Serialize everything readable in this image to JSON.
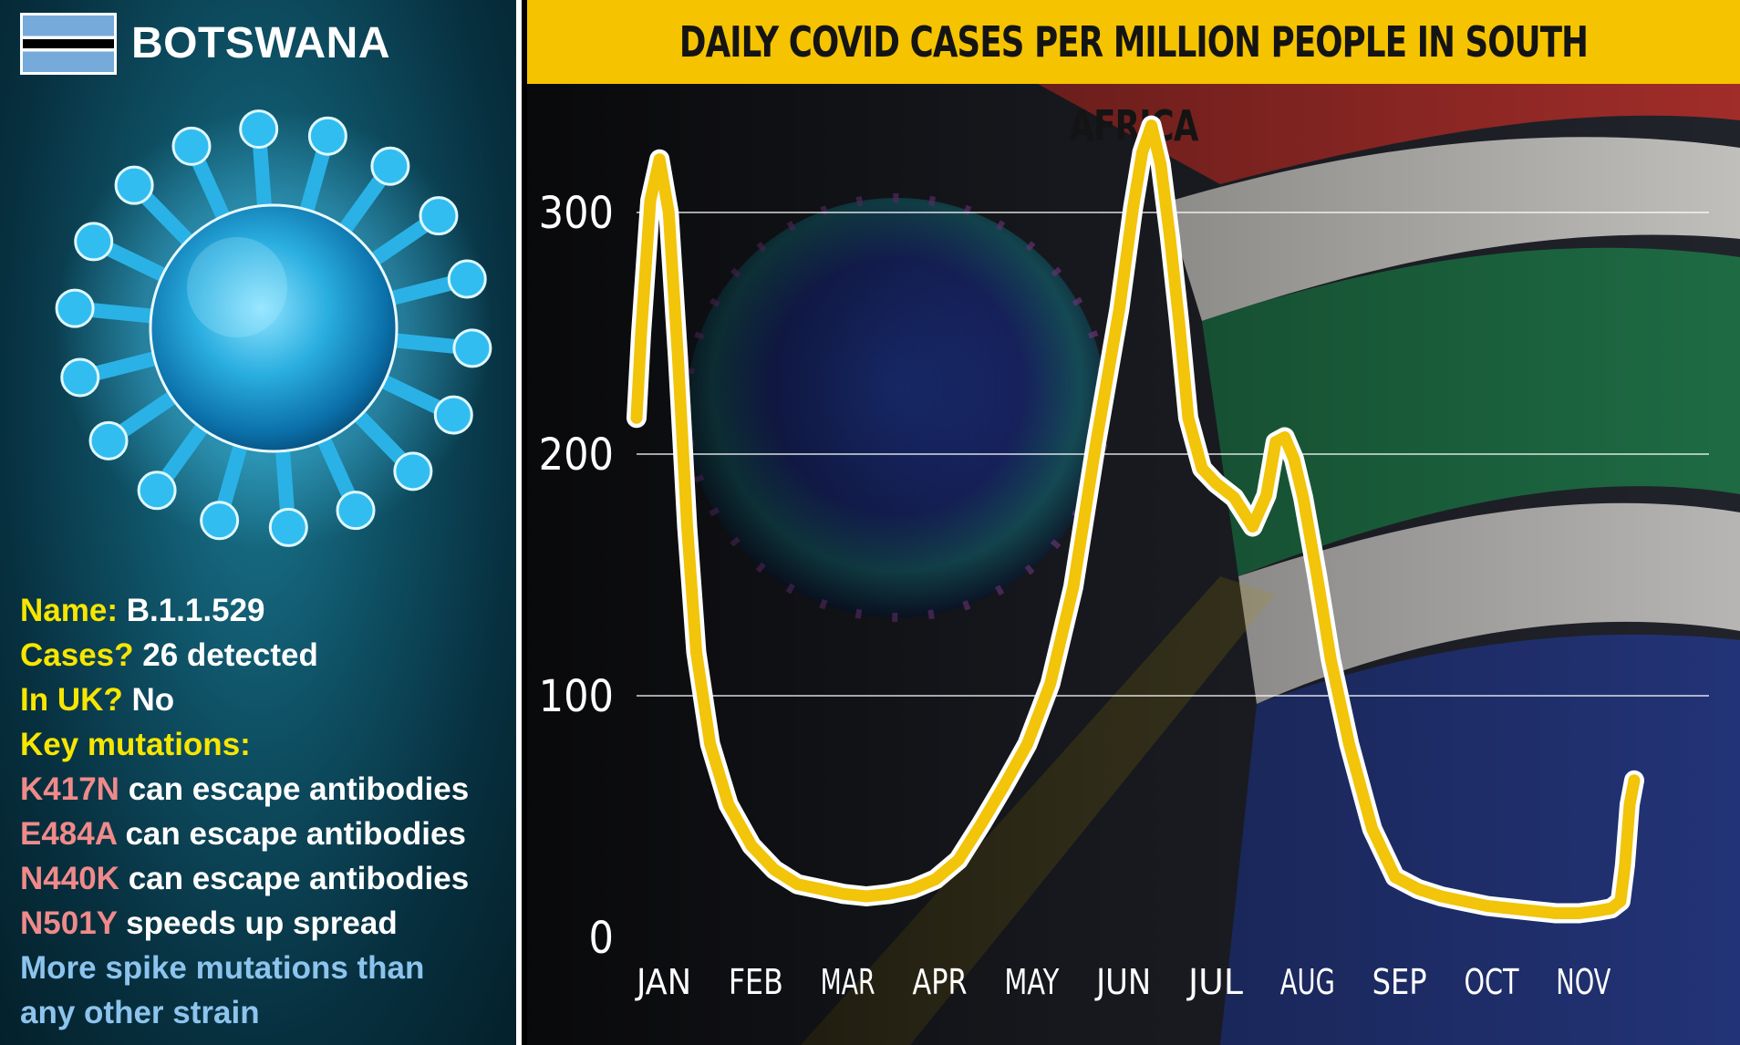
{
  "left_panel": {
    "country": "BOTSWANA",
    "facts": {
      "name_label": "Name:",
      "name_value": "B.1.1.529",
      "cases_label": "Cases?",
      "cases_value": "26 detected",
      "uk_label": "In UK?",
      "uk_value": "No",
      "mutations_label": "Key mutations:",
      "mutations": [
        {
          "code": "K417N",
          "effect": "can escape antibodies"
        },
        {
          "code": "E484A",
          "effect": "can escape antibodies"
        },
        {
          "code": "N440K",
          "effect": "can escape antibodies"
        },
        {
          "code": "N501Y",
          "effect": "speeds up spread"
        }
      ],
      "note_line1": "More spike mutations than",
      "note_line2": "any other strain"
    }
  },
  "colors": {
    "title_bar": "#f5c300",
    "line": "#f2c40a",
    "label_yellow": "#f7e600",
    "mutation_pink": "#f08a8a",
    "note_blue": "#8cc4ee"
  },
  "chart_data": {
    "type": "line",
    "title": "DAILY COVID CASES PER MILLION PEOPLE IN SOUTH AFRICA",
    "xlabel": "",
    "ylabel": "",
    "ylim": [
      0,
      340
    ],
    "yticks": [
      0,
      100,
      200,
      300
    ],
    "grid": true,
    "x_range": [
      0,
      10.85
    ],
    "categories": [
      "JAN",
      "FEB",
      "MAR",
      "APR",
      "MAY",
      "JUN",
      "JUL",
      "AUG",
      "SEP",
      "OCT",
      "NOV"
    ],
    "series": [
      {
        "x": [
          0.0,
          0.05,
          0.15,
          0.25,
          0.35,
          0.45,
          0.55,
          0.65,
          0.8,
          1.0,
          1.25,
          1.5,
          1.75,
          2.0,
          2.25,
          2.5,
          2.75,
          3.0,
          3.25,
          3.5,
          3.75,
          4.0,
          4.25,
          4.5,
          4.75,
          5.0,
          5.25,
          5.4,
          5.5,
          5.6,
          5.7,
          5.8,
          5.9,
          6.0,
          6.15,
          6.3,
          6.5,
          6.7,
          6.85,
          6.95,
          7.05,
          7.15,
          7.25,
          7.4,
          7.55,
          7.75,
          8.0,
          8.25,
          8.5,
          8.75,
          9.0,
          9.25,
          9.5,
          9.75,
          10.0,
          10.25,
          10.45,
          10.6,
          10.7,
          10.75,
          10.8,
          10.85
        ],
        "y": [
          215,
          250,
          305,
          322,
          300,
          240,
          170,
          118,
          80,
          55,
          38,
          28,
          22,
          20,
          18,
          17,
          18,
          20,
          24,
          32,
          47,
          63,
          80,
          105,
          145,
          205,
          260,
          302,
          325,
          336,
          320,
          290,
          255,
          215,
          194,
          188,
          182,
          170,
          183,
          205,
          207,
          198,
          182,
          150,
          115,
          80,
          45,
          25,
          20,
          17,
          15,
          13,
          12,
          11,
          10,
          10,
          11,
          12,
          15,
          30,
          55,
          65
        ]
      }
    ]
  }
}
